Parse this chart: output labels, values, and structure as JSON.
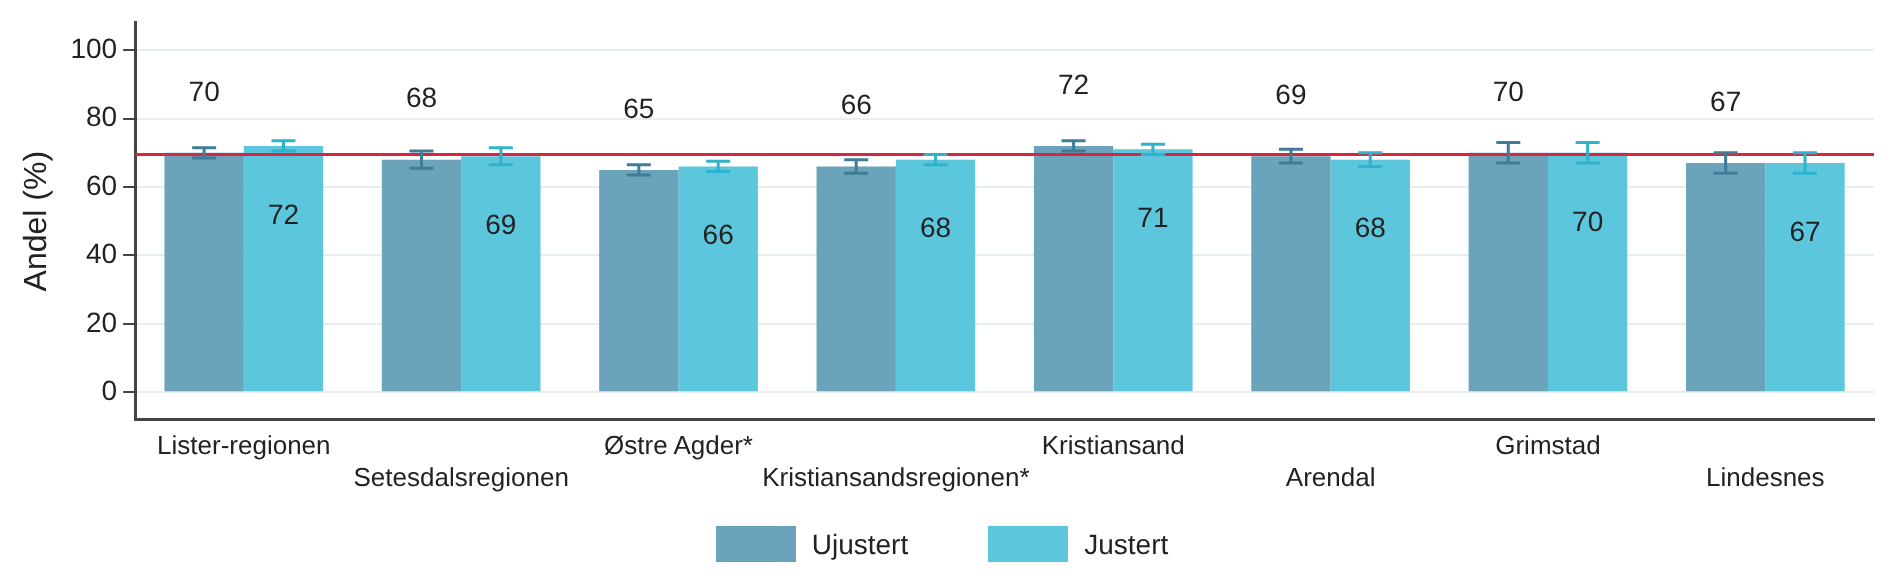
{
  "chart_data": {
    "type": "bar",
    "ylabel": "Andel (%)",
    "categories": [
      "Lister-regionen",
      "Setesdalsregionen",
      "Østre Agder*",
      "Kristiansandsregionen*",
      "Kristiansand",
      "Arendal",
      "Grimstad",
      "Lindesnes"
    ],
    "series": [
      {
        "name": "Ujustert",
        "color": "#6aa3ba",
        "values": [
          70,
          68,
          65,
          66,
          72,
          69,
          70,
          67
        ],
        "errors": [
          1.5,
          2.5,
          1.5,
          2,
          1.5,
          2,
          3,
          3
        ]
      },
      {
        "name": "Justert",
        "color": "#5bc6dc",
        "values": [
          72,
          69,
          66,
          68,
          71,
          68,
          70,
          67
        ],
        "errors": [
          1.5,
          2.5,
          1.5,
          1.5,
          1.5,
          2,
          3,
          3
        ]
      }
    ],
    "ylim": [
      -8,
      108
    ],
    "yticks": [
      0,
      20,
      40,
      60,
      80,
      100
    ],
    "grid": "y",
    "legend": "bottom",
    "data_labels": true,
    "ref_lines": [
      {
        "axis": "y",
        "value": 69.5,
        "color": "#d7263d"
      }
    ]
  }
}
